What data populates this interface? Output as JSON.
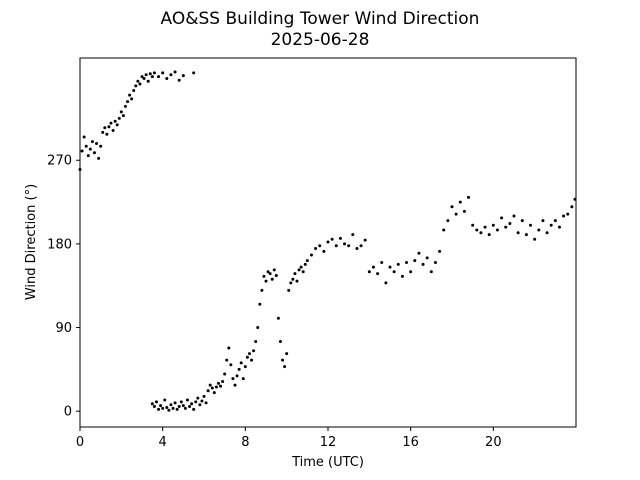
{
  "chart_data": {
    "type": "scatter",
    "title": "AO&SS Building Tower Wind Direction",
    "subtitle": "2025-06-28",
    "xlabel": "Time (UTC)",
    "ylabel": "Wind Direction (°)",
    "xlim": [
      0,
      24
    ],
    "ylim": [
      -17,
      380
    ],
    "x_ticks": [
      0,
      4,
      8,
      12,
      16,
      20
    ],
    "x_tick_labels": [
      "0",
      "4",
      "8",
      "12",
      "16",
      "20"
    ],
    "y_ticks": [
      0,
      90,
      180,
      270
    ],
    "y_tick_labels": [
      "0",
      "90",
      "180",
      "270"
    ],
    "grid": false,
    "legend": "none",
    "marker_color": "#000000",
    "series": [
      {
        "points": [
          [
            0.0,
            260
          ],
          [
            0.1,
            280
          ],
          [
            0.2,
            295
          ],
          [
            0.3,
            285
          ],
          [
            0.4,
            275
          ],
          [
            0.5,
            282
          ],
          [
            0.6,
            290
          ],
          [
            0.7,
            278
          ],
          [
            0.8,
            288
          ],
          [
            0.9,
            272
          ],
          [
            1.0,
            285
          ],
          [
            1.1,
            300
          ],
          [
            1.2,
            305
          ],
          [
            1.3,
            298
          ],
          [
            1.4,
            306
          ],
          [
            1.5,
            310
          ],
          [
            1.6,
            302
          ],
          [
            1.7,
            312
          ],
          [
            1.8,
            308
          ],
          [
            1.9,
            315
          ],
          [
            2.0,
            322
          ],
          [
            2.1,
            318
          ],
          [
            2.2,
            328
          ],
          [
            2.3,
            333
          ],
          [
            2.4,
            340
          ],
          [
            2.5,
            336
          ],
          [
            2.6,
            345
          ],
          [
            2.7,
            350
          ],
          [
            2.8,
            355
          ],
          [
            2.9,
            352
          ],
          [
            3.0,
            360
          ],
          [
            3.1,
            358
          ],
          [
            3.2,
            362
          ],
          [
            3.3,
            355
          ],
          [
            3.4,
            363
          ],
          [
            3.5,
            360
          ],
          [
            3.6,
            364
          ],
          [
            3.8,
            360
          ],
          [
            4.0,
            364
          ],
          [
            4.2,
            358
          ],
          [
            4.4,
            362
          ],
          [
            4.6,
            365
          ],
          [
            4.8,
            356
          ],
          [
            5.0,
            361
          ],
          [
            5.5,
            364
          ],
          [
            3.5,
            8
          ],
          [
            3.6,
            5
          ],
          [
            3.7,
            10
          ],
          [
            3.8,
            2
          ],
          [
            3.9,
            6
          ],
          [
            4.0,
            3
          ],
          [
            4.1,
            12
          ],
          [
            4.2,
            4
          ],
          [
            4.3,
            1
          ],
          [
            4.4,
            7
          ],
          [
            4.5,
            3
          ],
          [
            4.6,
            9
          ],
          [
            4.7,
            2
          ],
          [
            4.8,
            5
          ],
          [
            4.9,
            10
          ],
          [
            5.0,
            6
          ],
          [
            5.1,
            3
          ],
          [
            5.2,
            12
          ],
          [
            5.3,
            5
          ],
          [
            5.4,
            8
          ],
          [
            5.5,
            2
          ],
          [
            5.6,
            10
          ],
          [
            5.7,
            14
          ],
          [
            5.8,
            7
          ],
          [
            5.9,
            11
          ],
          [
            6.0,
            16
          ],
          [
            6.1,
            9
          ],
          [
            6.2,
            22
          ],
          [
            6.3,
            28
          ],
          [
            6.4,
            25
          ],
          [
            6.5,
            20
          ],
          [
            6.6,
            26
          ],
          [
            6.7,
            30
          ],
          [
            6.8,
            27
          ],
          [
            6.9,
            32
          ],
          [
            7.0,
            40
          ],
          [
            7.1,
            55
          ],
          [
            7.2,
            68
          ],
          [
            7.3,
            50
          ],
          [
            7.4,
            35
          ],
          [
            7.5,
            28
          ],
          [
            7.6,
            38
          ],
          [
            7.7,
            45
          ],
          [
            7.8,
            52
          ],
          [
            7.9,
            35
          ],
          [
            8.0,
            48
          ],
          [
            8.1,
            58
          ],
          [
            8.2,
            62
          ],
          [
            8.3,
            55
          ],
          [
            8.4,
            65
          ],
          [
            8.5,
            75
          ],
          [
            8.6,
            90
          ],
          [
            8.7,
            115
          ],
          [
            8.8,
            130
          ],
          [
            8.9,
            145
          ],
          [
            9.0,
            140
          ],
          [
            9.1,
            150
          ],
          [
            9.2,
            148
          ],
          [
            9.3,
            142
          ],
          [
            9.4,
            152
          ],
          [
            9.5,
            146
          ],
          [
            9.6,
            100
          ],
          [
            9.7,
            75
          ],
          [
            9.8,
            55
          ],
          [
            9.9,
            48
          ],
          [
            10.0,
            62
          ],
          [
            10.1,
            130
          ],
          [
            10.2,
            138
          ],
          [
            10.3,
            142
          ],
          [
            10.4,
            148
          ],
          [
            10.5,
            140
          ],
          [
            10.6,
            152
          ],
          [
            10.7,
            155
          ],
          [
            10.8,
            150
          ],
          [
            10.9,
            158
          ],
          [
            11.0,
            162
          ],
          [
            11.2,
            168
          ],
          [
            11.4,
            175
          ],
          [
            11.6,
            178
          ],
          [
            11.8,
            172
          ],
          [
            12.0,
            182
          ],
          [
            12.2,
            185
          ],
          [
            12.4,
            178
          ],
          [
            12.6,
            186
          ],
          [
            12.8,
            180
          ],
          [
            13.0,
            178
          ],
          [
            13.2,
            190
          ],
          [
            13.4,
            175
          ],
          [
            13.6,
            178
          ],
          [
            13.8,
            184
          ],
          [
            14.0,
            150
          ],
          [
            14.2,
            155
          ],
          [
            14.4,
            148
          ],
          [
            14.6,
            160
          ],
          [
            14.8,
            138
          ],
          [
            15.0,
            155
          ],
          [
            15.2,
            150
          ],
          [
            15.4,
            158
          ],
          [
            15.6,
            145
          ],
          [
            15.8,
            160
          ],
          [
            16.0,
            150
          ],
          [
            16.2,
            162
          ],
          [
            16.4,
            170
          ],
          [
            16.6,
            158
          ],
          [
            16.8,
            165
          ],
          [
            17.0,
            150
          ],
          [
            17.2,
            160
          ],
          [
            17.4,
            172
          ],
          [
            17.6,
            195
          ],
          [
            17.8,
            205
          ],
          [
            18.0,
            220
          ],
          [
            18.2,
            212
          ],
          [
            18.4,
            225
          ],
          [
            18.6,
            215
          ],
          [
            18.8,
            230
          ],
          [
            19.0,
            200
          ],
          [
            19.2,
            195
          ],
          [
            19.4,
            192
          ],
          [
            19.6,
            198
          ],
          [
            19.8,
            190
          ],
          [
            20.0,
            200
          ],
          [
            20.2,
            195
          ],
          [
            20.4,
            208
          ],
          [
            20.6,
            198
          ],
          [
            20.8,
            202
          ],
          [
            21.0,
            210
          ],
          [
            21.2,
            192
          ],
          [
            21.4,
            205
          ],
          [
            21.6,
            190
          ],
          [
            21.8,
            200
          ],
          [
            22.0,
            185
          ],
          [
            22.2,
            195
          ],
          [
            22.4,
            205
          ],
          [
            22.6,
            192
          ],
          [
            22.8,
            200
          ],
          [
            23.0,
            205
          ],
          [
            23.2,
            198
          ],
          [
            23.4,
            210
          ],
          [
            23.6,
            212
          ],
          [
            23.8,
            220
          ],
          [
            23.95,
            228
          ]
        ]
      }
    ]
  }
}
